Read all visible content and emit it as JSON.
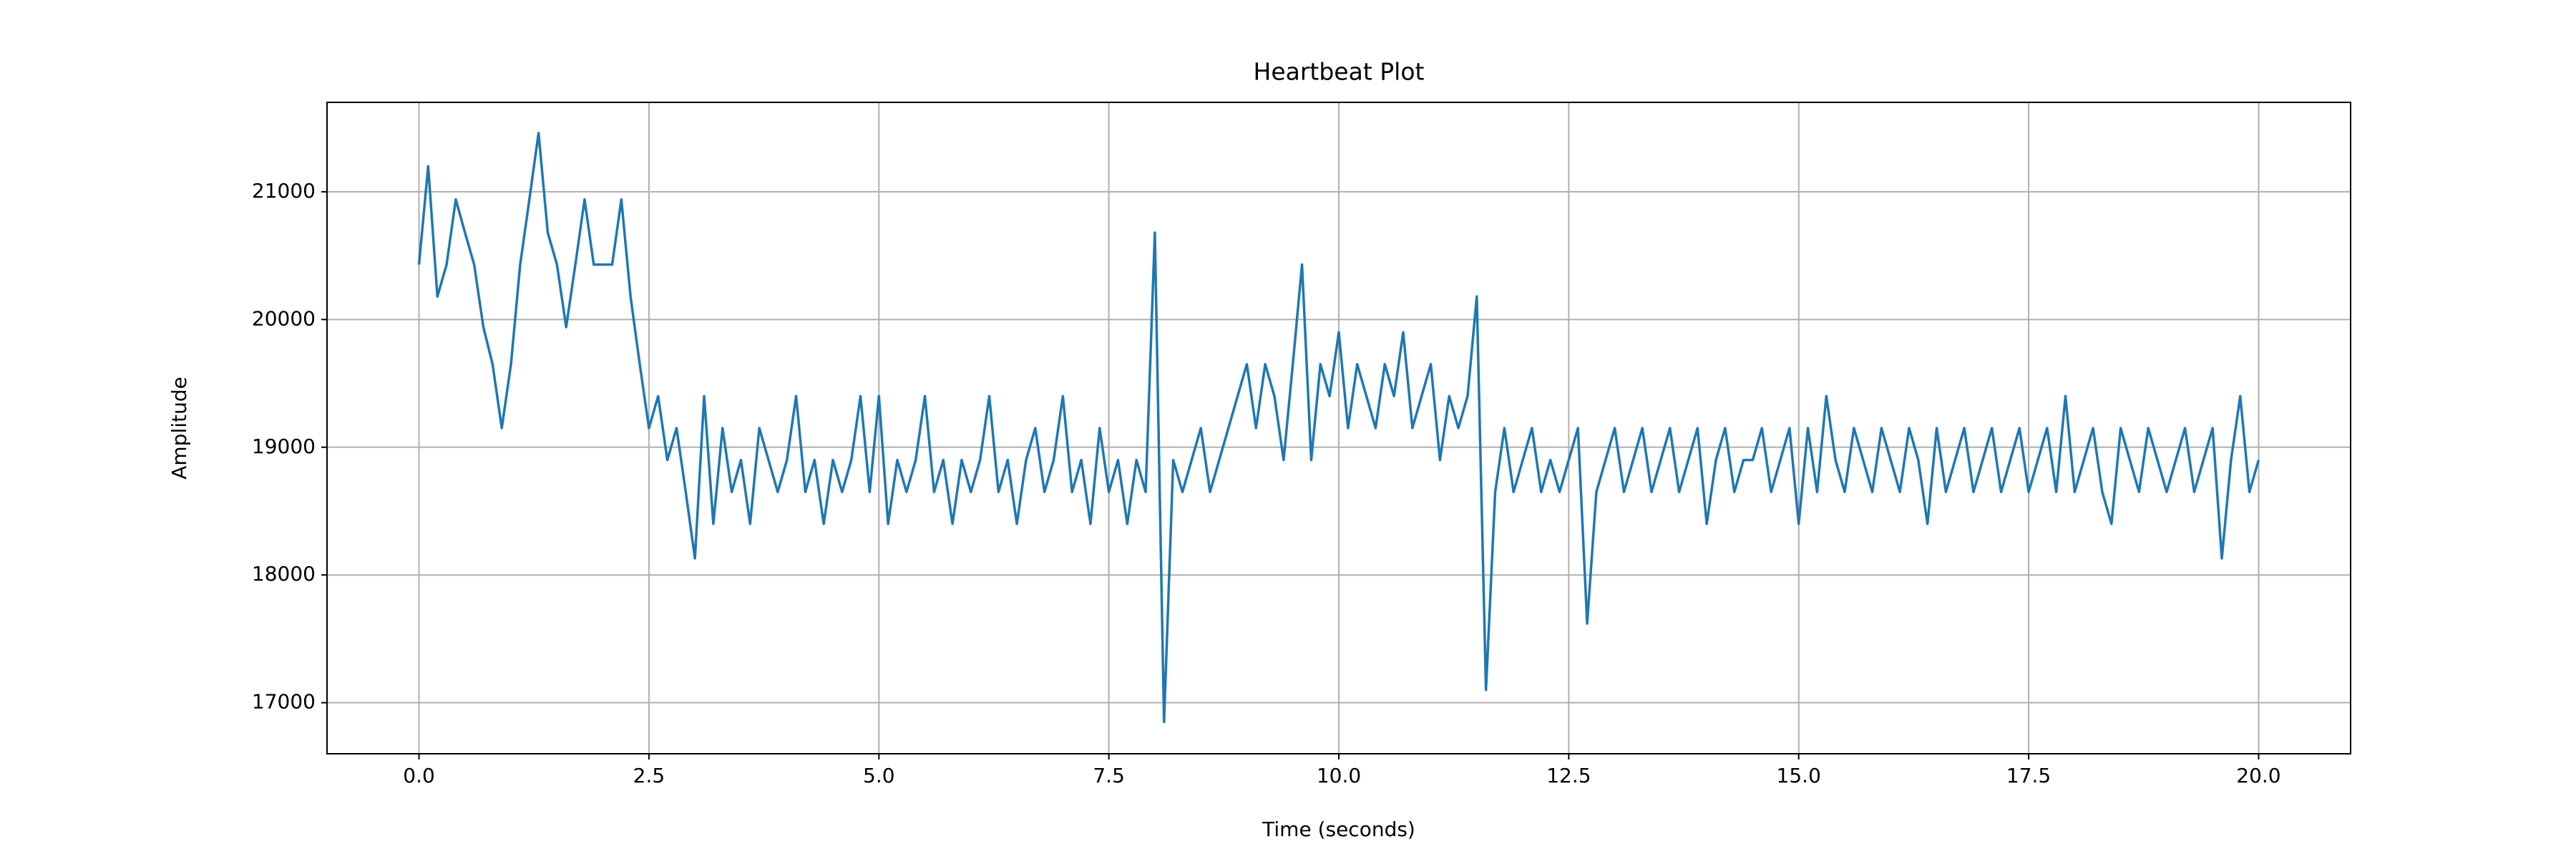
{
  "chart_data": {
    "type": "line",
    "title": "Heartbeat Plot",
    "x_label": "Time (seconds)",
    "y_label": "Amplitude",
    "color": "#1f77b4",
    "grid": true,
    "xlim": [
      -1,
      21
    ],
    "ylim": [
      16600,
      21700
    ],
    "xticks": [
      {
        "value": 0,
        "label": "0.0"
      },
      {
        "value": 2.5,
        "label": "2.5"
      },
      {
        "value": 5,
        "label": "5.0"
      },
      {
        "value": 7.5,
        "label": "7.5"
      },
      {
        "value": 10,
        "label": "10.0"
      },
      {
        "value": 12.5,
        "label": "12.5"
      },
      {
        "value": 15,
        "label": "15.0"
      },
      {
        "value": 17.5,
        "label": "17.5"
      },
      {
        "value": 20,
        "label": "20.0"
      }
    ],
    "yticks": [
      17000,
      18000,
      19000,
      20000,
      21000
    ],
    "x": [
      0,
      0.1,
      0.2,
      0.3,
      0.4,
      0.5,
      0.6,
      0.7,
      0.8,
      0.9,
      1,
      1.1,
      1.2,
      1.3,
      1.4,
      1.5,
      1.6,
      1.7,
      1.8,
      1.9,
      2,
      2.1,
      2.2,
      2.3,
      2.4,
      2.5,
      2.6,
      2.7,
      2.8,
      2.9,
      3,
      3.1,
      3.2,
      3.3,
      3.4,
      3.5,
      3.6,
      3.7,
      3.8,
      3.9,
      4,
      4.1,
      4.2,
      4.3,
      4.4,
      4.5,
      4.6,
      4.7,
      4.8,
      4.9,
      5,
      5.1,
      5.2,
      5.3,
      5.4,
      5.5,
      5.6,
      5.7,
      5.8,
      5.9,
      6,
      6.1,
      6.2,
      6.3,
      6.4,
      6.5,
      6.6,
      6.7,
      6.8,
      6.9,
      7,
      7.1,
      7.2,
      7.3,
      7.4,
      7.5,
      7.6,
      7.7,
      7.8,
      7.9,
      8,
      8.1,
      8.2,
      8.3,
      8.4,
      8.5,
      8.6,
      8.7,
      8.8,
      8.9,
      9,
      9.1,
      9.2,
      9.3,
      9.4,
      9.5,
      9.6,
      9.7,
      9.8,
      9.9,
      10,
      10.1,
      10.2,
      10.3,
      10.4,
      10.5,
      10.6,
      10.7,
      10.8,
      10.9,
      11,
      11.1,
      11.2,
      11.3,
      11.4,
      11.5,
      11.6,
      11.7,
      11.8,
      11.9,
      12,
      12.1,
      12.2,
      12.3,
      12.4,
      12.5,
      12.6,
      12.7,
      12.8,
      12.9,
      13,
      13.1,
      13.2,
      13.3,
      13.4,
      13.5,
      13.6,
      13.7,
      13.8,
      13.9,
      14,
      14.1,
      14.2,
      14.3,
      14.4,
      14.5,
      14.6,
      14.7,
      14.8,
      14.9,
      15,
      15.1,
      15.2,
      15.3,
      15.4,
      15.5,
      15.6,
      15.7,
      15.8,
      15.9,
      16,
      16.1,
      16.2,
      16.3,
      16.4,
      16.5,
      16.6,
      16.7,
      16.8,
      16.9,
      17,
      17.1,
      17.2,
      17.3,
      17.4,
      17.5,
      17.6,
      17.7,
      17.8,
      17.9,
      18,
      18.1,
      18.2,
      18.3,
      18.4,
      18.5,
      18.6,
      18.7,
      18.8,
      18.9,
      19,
      19.1,
      19.2,
      19.3,
      19.4,
      19.5,
      19.6,
      19.7,
      19.8,
      19.9,
      20
    ],
    "values": [
      20430,
      21200,
      20180,
      20430,
      20940,
      20680,
      20430,
      19940,
      19650,
      19150,
      19650,
      20430,
      20940,
      21460,
      20680,
      20430,
      19940,
      20430,
      20940,
      20430,
      20430,
      20430,
      20940,
      20180,
      19650,
      19150,
      19400,
      18900,
      19150,
      18650,
      18130,
      19400,
      18400,
      19150,
      18650,
      18900,
      18400,
      19150,
      18900,
      18650,
      18900,
      19400,
      18650,
      18900,
      18400,
      18900,
      18650,
      18900,
      19400,
      18650,
      19400,
      18400,
      18900,
      18650,
      18900,
      19400,
      18650,
      18900,
      18400,
      18900,
      18650,
      18900,
      19400,
      18650,
      18900,
      18400,
      18900,
      19150,
      18650,
      18900,
      19400,
      18650,
      18900,
      18400,
      19150,
      18650,
      18900,
      18400,
      18900,
      18650,
      20680,
      16850,
      18900,
      18650,
      18900,
      19150,
      18650,
      18900,
      19150,
      19400,
      19650,
      19150,
      19650,
      19400,
      18900,
      19650,
      20430,
      18900,
      19650,
      19400,
      19900,
      19150,
      19650,
      19400,
      19150,
      19650,
      19400,
      19900,
      19150,
      19400,
      19650,
      18900,
      19400,
      19150,
      19400,
      20180,
      17100,
      18650,
      19150,
      18650,
      18900,
      19150,
      18650,
      18900,
      18650,
      18900,
      19150,
      17620,
      18650,
      18900,
      19150,
      18650,
      18900,
      19150,
      18650,
      18900,
      19150,
      18650,
      18900,
      19150,
      18400,
      18900,
      19150,
      18650,
      18900,
      18900,
      19150,
      18650,
      18900,
      19150,
      18400,
      19150,
      18650,
      19400,
      18900,
      18650,
      19150,
      18900,
      18650,
      19150,
      18900,
      18650,
      19150,
      18900,
      18400,
      19150,
      18650,
      18900,
      19150,
      18650,
      18900,
      19150,
      18650,
      18900,
      19150,
      18650,
      18900,
      19150,
      18650,
      19400,
      18650,
      18900,
      19150,
      18650,
      18400,
      19150,
      18900,
      18650,
      19150,
      18900,
      18650,
      18900,
      19150,
      18650,
      18900,
      19150,
      18130,
      18900,
      19400,
      18650,
      18900
    ]
  }
}
